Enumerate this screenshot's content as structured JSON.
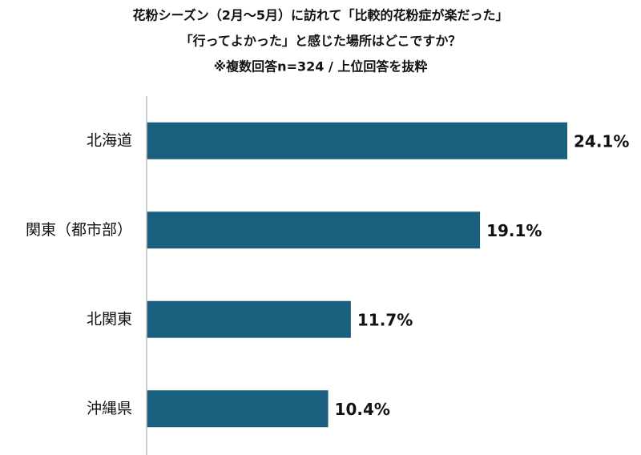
{
  "chart_data": {
    "type": "hbar",
    "title": [
      "花粉シーズン（2月～5月）に訪れて「比較的花粉症が楽だった」",
      "「行ってよかった」と感じた場所はどこですか？",
      "※複数回答n=324 / 上位回答を抜粋"
    ],
    "categories": [
      "北海道",
      "関東（都市部）",
      "北関東",
      "沖縄県"
    ],
    "values": [
      24.1,
      19.1,
      11.7,
      10.4
    ],
    "value_labels": [
      "24.1%",
      "19.1%",
      "11.7%",
      "10.4%"
    ],
    "color": "#1b5f7e"
  }
}
